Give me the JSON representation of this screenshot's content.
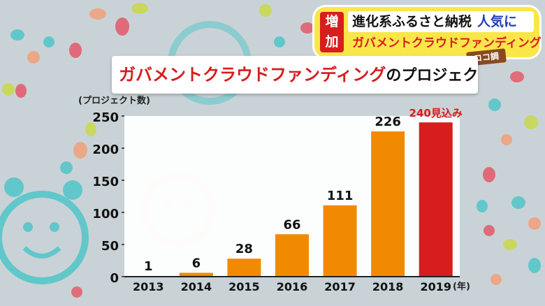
{
  "caption": {
    "tag": "増加",
    "line1": "進化系ふるさと納税",
    "line1_accent": "人気に",
    "line2": "ガバメントクラウドファンディング",
    "badge": "ココ調"
  },
  "title": {
    "main": "ガバメントクラウドファンディング",
    "sub": "のプロジェクト数"
  },
  "colors": {
    "bar": "#f28a00",
    "highlight": "#d71d1d",
    "axis": "#222222",
    "panel": "#ffffff"
  },
  "chart_data": {
    "type": "bar",
    "ylabel": "(プロジェクト数)",
    "xunit": "(年)",
    "ylim": [
      0,
      250
    ],
    "yticks": [
      "0",
      "50",
      "100",
      "150",
      "200",
      "250"
    ],
    "categories": [
      "2013",
      "2014",
      "2015",
      "2016",
      "2017",
      "2018",
      "2019"
    ],
    "values": [
      1,
      6,
      28,
      66,
      111,
      226,
      240
    ],
    "value_labels": [
      "1",
      "6",
      "28",
      "66",
      "111",
      "226",
      "240見込み"
    ],
    "highlight_index": 6,
    "grid": false,
    "legend": "none"
  }
}
